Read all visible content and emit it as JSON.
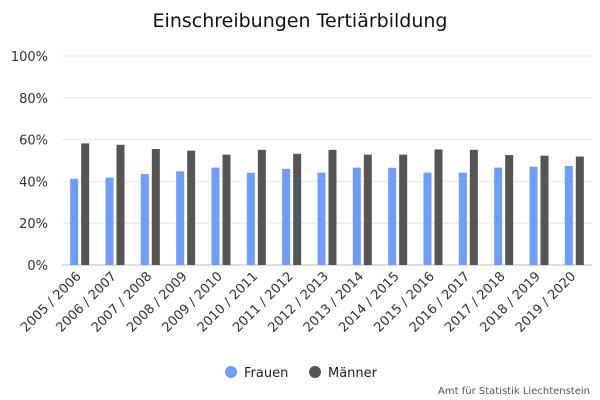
{
  "chart_data": {
    "type": "bar",
    "title": "Einschreibungen Tertiärbildung",
    "categories": [
      "2005 / 2006",
      "2006 / 2007",
      "2007 / 2008",
      "2008 / 2009",
      "2009 / 2010",
      "2010 / 2011",
      "2011 / 2012",
      "2012 / 2013",
      "2013 / 2014",
      "2014 / 2015",
      "2015 / 2016",
      "2016 / 2017",
      "2017 / 2018",
      "2018 / 2019",
      "2019 / 2020"
    ],
    "series": [
      {
        "name": "Frauen",
        "color": "#6f9cff",
        "values": [
          41.3,
          41.8,
          43.5,
          44.8,
          46.6,
          44.1,
          46.0,
          44.2,
          46.6,
          46.5,
          44.2,
          44.2,
          46.6,
          47.0,
          47.4
        ]
      },
      {
        "name": "Männer",
        "color": "#555555",
        "values": [
          58.2,
          57.5,
          55.5,
          54.7,
          52.8,
          55.1,
          53.2,
          55.1,
          52.8,
          52.8,
          55.3,
          55.1,
          52.6,
          52.3,
          51.9
        ]
      }
    ],
    "yticks": [
      "0%",
      "20%",
      "40%",
      "60%",
      "80%",
      "100%"
    ],
    "ylim": [
      0,
      100
    ],
    "grid": true,
    "legend_position": "bottom-center",
    "credit": "Amt für Statistik Liechtenstein"
  }
}
